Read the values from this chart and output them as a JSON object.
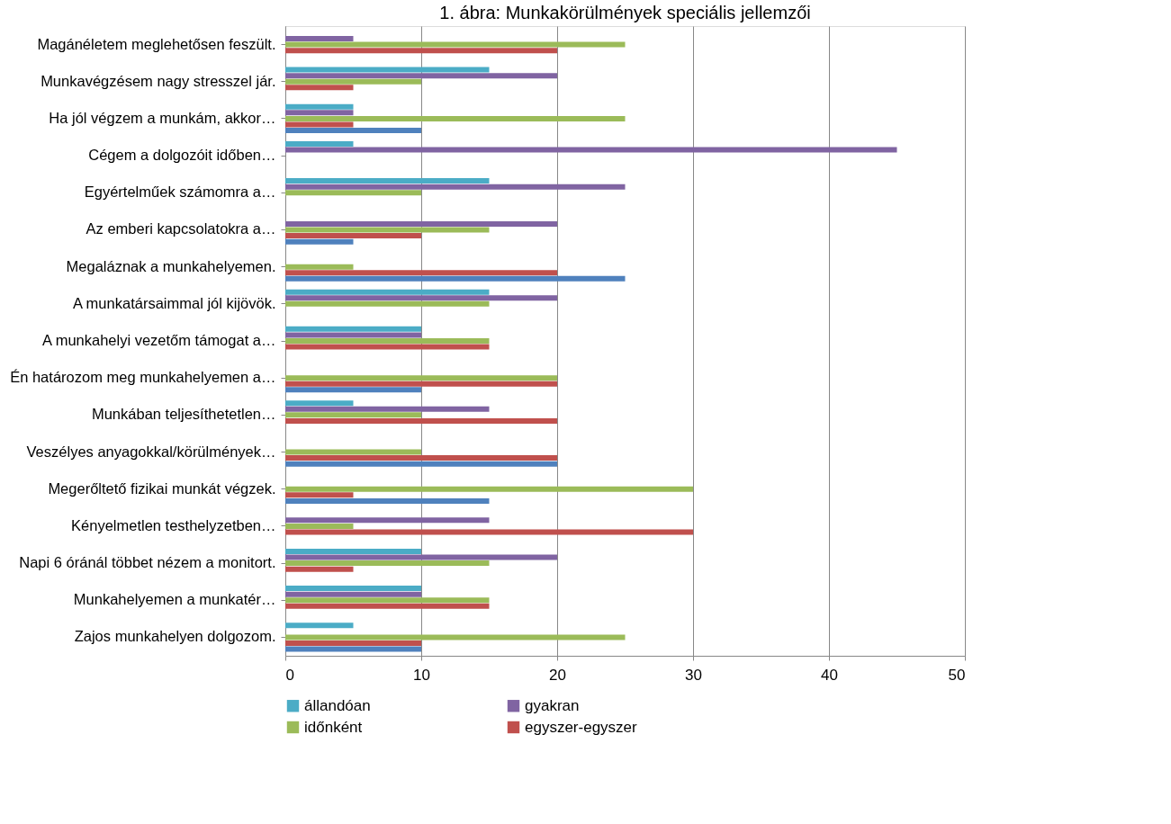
{
  "chart_data": {
    "type": "bar",
    "orientation": "horizontal",
    "title": "1. ábra: Munkakörülmények speciális jellemzői",
    "categories": [
      "Magánéletem meglehetősen feszült.",
      "Munkavégzésem nagy stresszel jár.",
      "Ha jól végzem a munkám, akkor…",
      "Cégem a dolgozóit időben…",
      "Egyértelműek számomra a…",
      "Az emberi kapcsolatokra a…",
      "Megaláznak a munkahelyemen.",
      "A munkatársaimmal jól kijövök.",
      "A munkahelyi vezetőm támogat a…",
      "Én határozom meg munkahelyemen a…",
      "Munkában teljesíthetetlen…",
      "Veszélyes anyagokkal/körülmények…",
      "Megerőltető fizikai munkát végzek.",
      "Kényelmetlen testhelyzetben…",
      "Napi 6 óránál többet nézem a monitort.",
      "Munkahelyemen a munkatér…",
      "Zajos munkahelyen dolgozom."
    ],
    "series": [
      {
        "name": "állandóan",
        "color": "#4bacc6",
        "values": [
          0,
          15,
          5,
          5,
          15,
          0,
          0,
          15,
          10,
          0,
          5,
          0,
          0,
          0,
          10,
          10,
          5
        ]
      },
      {
        "name": "gyakran",
        "color": "#8064a2",
        "values": [
          5,
          20,
          5,
          45,
          25,
          20,
          0,
          20,
          10,
          0,
          15,
          0,
          0,
          15,
          20,
          10,
          0
        ]
      },
      {
        "name": "időnként",
        "color": "#9bbb59",
        "values": [
          25,
          10,
          25,
          0,
          10,
          15,
          5,
          15,
          15,
          20,
          10,
          10,
          30,
          5,
          15,
          15,
          25
        ]
      },
      {
        "name": "egyszer-egyszer",
        "color": "#c0504d",
        "values": [
          20,
          5,
          5,
          0,
          0,
          10,
          20,
          0,
          15,
          20,
          20,
          20,
          5,
          30,
          5,
          15,
          10
        ]
      },
      {
        "color": "#4f81bd",
        "values": [
          0,
          0,
          10,
          0,
          0,
          5,
          25,
          0,
          0,
          10,
          0,
          20,
          15,
          0,
          0,
          0,
          10
        ]
      }
    ],
    "xlim": [
      0,
      50
    ],
    "xticks": [
      0,
      10,
      20,
      30,
      40,
      50
    ],
    "grid": "x",
    "legend": "bottom"
  }
}
